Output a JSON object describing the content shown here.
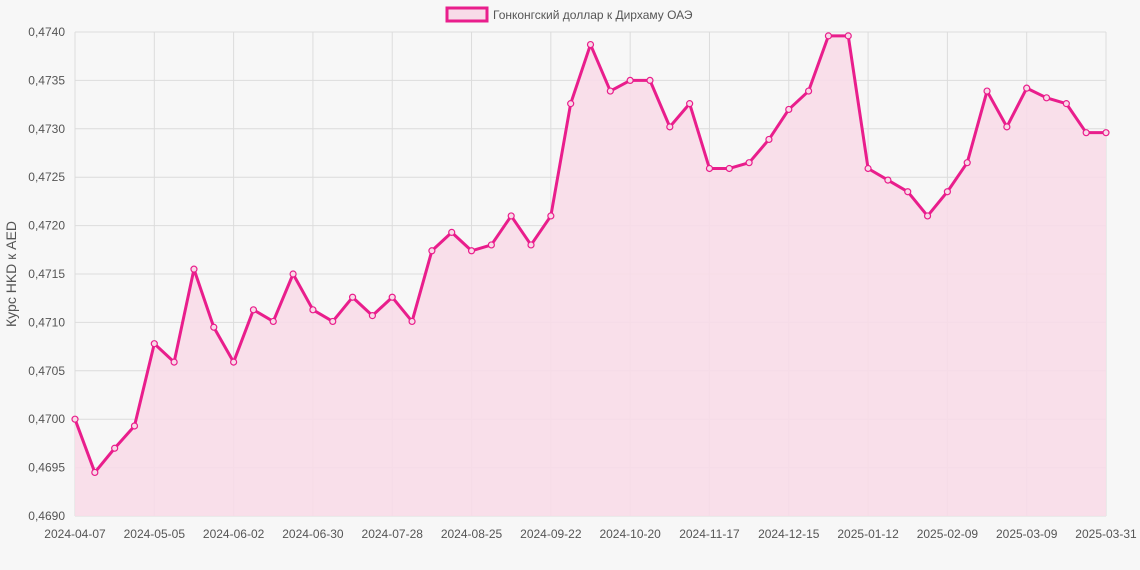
{
  "chart_data": {
    "type": "area",
    "legend": {
      "label": "Гонконгский доллар к Дирхаму ОАЭ",
      "position": "top-center"
    },
    "ylabel": "Курс HKD к AED",
    "xlabel": "",
    "ylim": [
      0.469,
      0.474
    ],
    "yticks": [
      "0,4690",
      "0,4695",
      "0,4700",
      "0,4705",
      "0,4710",
      "0,4715",
      "0,4720",
      "0,4725",
      "0,4730",
      "0,4735",
      "0,4740"
    ],
    "xticks": [
      "2024-04-07",
      "2024-05-05",
      "2024-06-02",
      "2024-06-30",
      "2024-07-28",
      "2024-08-25",
      "2024-09-22",
      "2024-10-20",
      "2024-11-17",
      "2024-12-15",
      "2025-01-12",
      "2025-02-09",
      "2025-03-09",
      "2025-03-31"
    ],
    "grid": true,
    "colors": {
      "line": "#e91e8c",
      "fill": "#f8dbe8",
      "grid": "#dcdcdc",
      "background": "#f7f7f7"
    },
    "series": [
      {
        "name": "Гонконгский доллар к Дирхаму ОАЭ",
        "values": [
          0.47,
          0.46945,
          0.4697,
          0.46993,
          0.47078,
          0.47059,
          0.47155,
          0.47095,
          0.47059,
          0.47113,
          0.47101,
          0.4715,
          0.47113,
          0.47101,
          0.47126,
          0.47107,
          0.47126,
          0.47101,
          0.47174,
          0.47193,
          0.47174,
          0.4718,
          0.4721,
          0.4718,
          0.4721,
          0.47326,
          0.47387,
          0.47339,
          0.4735,
          0.4735,
          0.47302,
          0.47326,
          0.47259,
          0.47259,
          0.47265,
          0.47289,
          0.4732,
          0.47339,
          0.47396,
          0.47396,
          0.47259,
          0.47247,
          0.47235,
          0.4721,
          0.47235,
          0.47265,
          0.47339,
          0.47302,
          0.47342,
          0.47332,
          0.47326,
          0.47296,
          0.47296
        ]
      }
    ]
  }
}
